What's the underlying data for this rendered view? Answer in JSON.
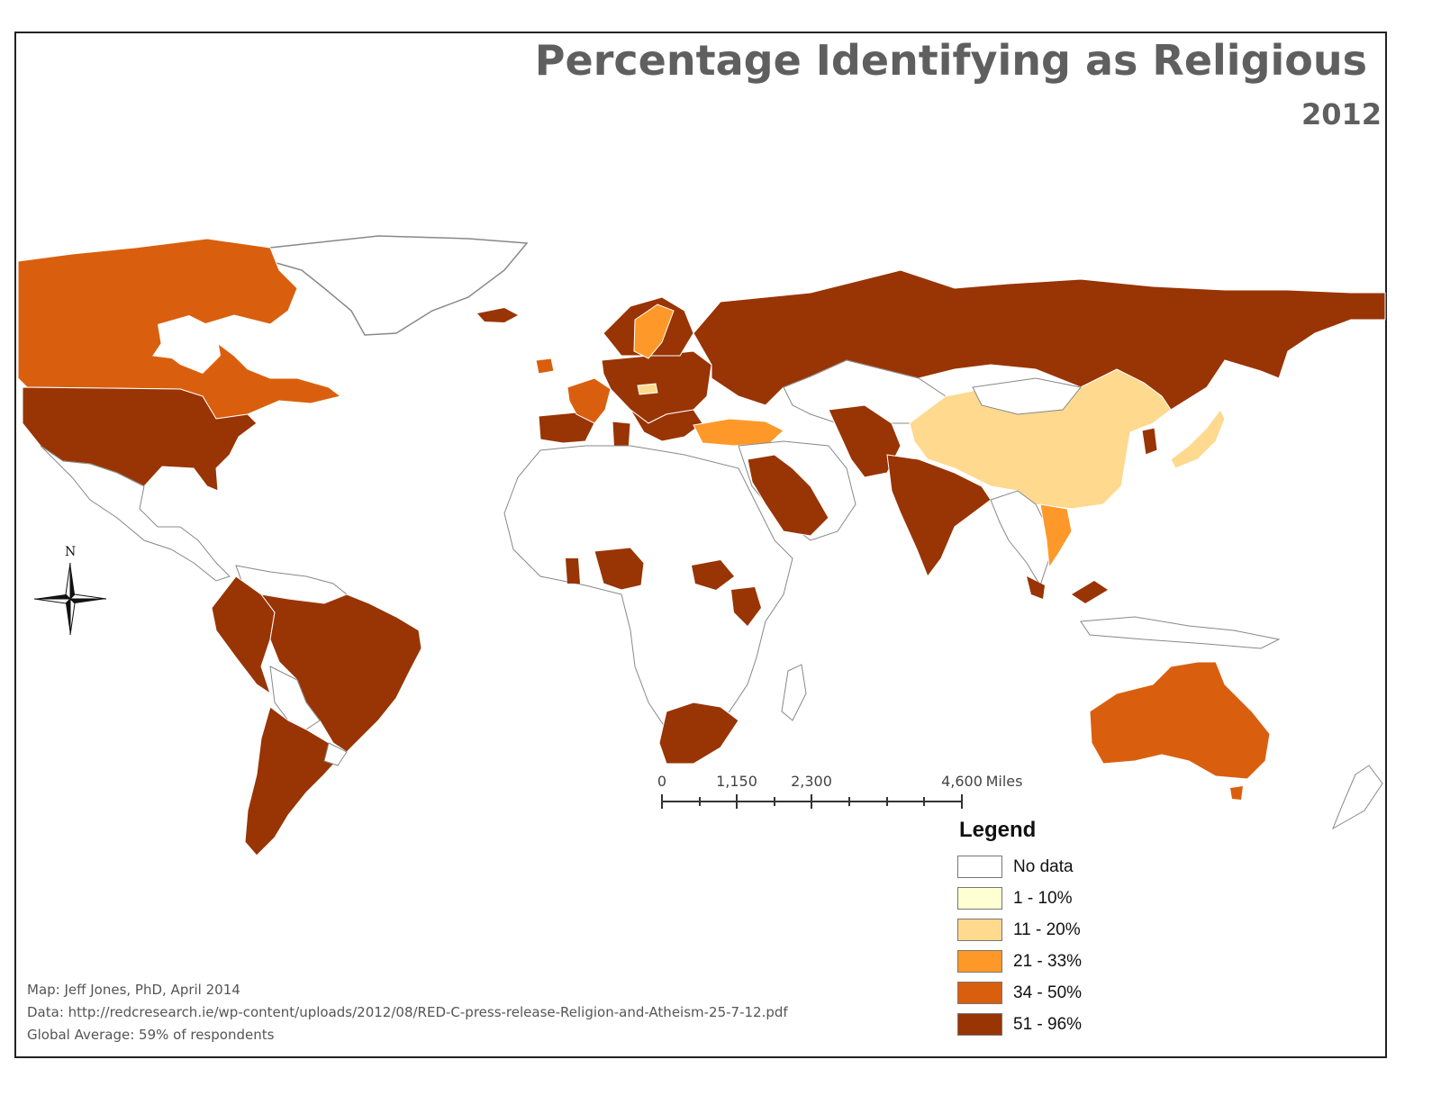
{
  "title": "Percentage Identifying as Religious",
  "subtitle": "2012",
  "legend": {
    "title": "Legend",
    "items": [
      {
        "label": "No data",
        "color": "#ffffff"
      },
      {
        "label": "1 - 10%",
        "color": "#ffffd4"
      },
      {
        "label": "11 - 20%",
        "color": "#fed98e"
      },
      {
        "label": "21 - 33%",
        "color": "#fe9929"
      },
      {
        "label": "34 - 50%",
        "color": "#d95f0e"
      },
      {
        "label": "51 - 96%",
        "color": "#993404"
      }
    ]
  },
  "scale_bar": {
    "labels": [
      "0",
      "1,150",
      "2,300",
      "4,600"
    ],
    "unit": "Miles"
  },
  "compass": {
    "north_label": "N",
    "icon": "north-arrow-compass-rose"
  },
  "credits": {
    "map": "Map:  Jeff Jones, PhD, April 2014",
    "data": "Data:  http://redcresearch.ie/wp-content/uploads/2012/08/RED-C-press-release-Religion-and-Atheism-25-7-12.pdf",
    "average": "Global Average:  59% of respondents"
  },
  "regions": [
    {
      "name": "canada",
      "class": "34 - 50%"
    },
    {
      "name": "united-states",
      "class": "51 - 96%"
    },
    {
      "name": "brazil",
      "class": "51 - 96%"
    },
    {
      "name": "argentina",
      "class": "51 - 96%"
    },
    {
      "name": "russia",
      "class": "51 - 96%"
    },
    {
      "name": "china",
      "class": "11 - 20%"
    },
    {
      "name": "japan",
      "class": "11 - 20%"
    },
    {
      "name": "india",
      "class": "51 - 96%"
    },
    {
      "name": "australia",
      "class": "34 - 50%"
    },
    {
      "name": "france",
      "class": "34 - 50%"
    },
    {
      "name": "sweden",
      "class": "21 - 33%"
    },
    {
      "name": "turkey",
      "class": "21 - 33%"
    },
    {
      "name": "vietnam",
      "class": "21 - 33%"
    },
    {
      "name": "south-africa",
      "class": "51 - 96%"
    },
    {
      "name": "nigeria",
      "class": "51 - 96%"
    },
    {
      "name": "saudi-arabia",
      "class": "51 - 96%"
    }
  ]
}
